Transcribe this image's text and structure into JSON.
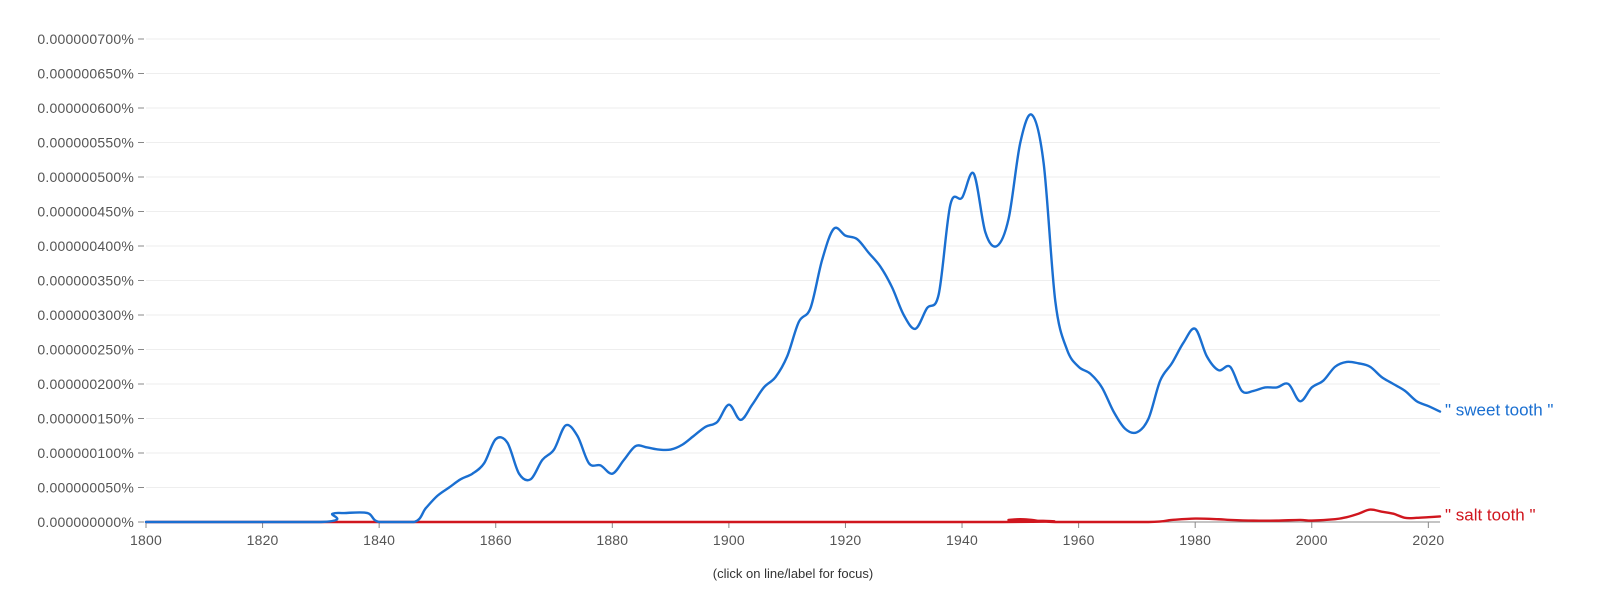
{
  "chart_data": {
    "type": "line",
    "title": "",
    "xlabel": "",
    "ylabel": "",
    "xlim": [
      1800,
      2022
    ],
    "ylim": [
      0,
      7e-07
    ],
    "grid": true,
    "legend": "right-end-labels",
    "x_ticks": [
      1800,
      1820,
      1840,
      1860,
      1880,
      1900,
      1920,
      1940,
      1960,
      1980,
      2000,
      2020
    ],
    "y_ticks": [
      0,
      5e-08,
      1e-07,
      1.5e-07,
      2e-07,
      2.5e-07,
      3e-07,
      3.5e-07,
      4e-07,
      4.5e-07,
      5e-07,
      5.5e-07,
      6e-07,
      6.5e-07,
      7e-07
    ],
    "y_tick_labels": [
      "0.000000000%",
      "0.000000050%",
      "0.000000100%",
      "0.000000150%",
      "0.000000200%",
      "0.000000250%",
      "0.000000300%",
      "0.000000350%",
      "0.000000400%",
      "0.000000450%",
      "0.000000500%",
      "0.000000550%",
      "0.000000600%",
      "0.000000650%",
      "0.000000700%"
    ],
    "series": [
      {
        "name": "\" sweet tooth \"",
        "color": "#1a6fd1",
        "x": [
          1800,
          1830,
          1832,
          1834,
          1838,
          1840,
          1846,
          1848,
          1850,
          1852,
          1854,
          1856,
          1858,
          1860,
          1862,
          1864,
          1866,
          1868,
          1870,
          1872,
          1874,
          1876,
          1878,
          1880,
          1882,
          1884,
          1886,
          1888,
          1890,
          1892,
          1894,
          1896,
          1898,
          1900,
          1902,
          1904,
          1906,
          1908,
          1910,
          1912,
          1914,
          1916,
          1918,
          1920,
          1922,
          1924,
          1926,
          1928,
          1930,
          1932,
          1934,
          1936,
          1938,
          1940,
          1942,
          1944,
          1946,
          1948,
          1950,
          1952,
          1954,
          1956,
          1958,
          1960,
          1962,
          1964,
          1966,
          1968,
          1970,
          1972,
          1974,
          1976,
          1978,
          1980,
          1982,
          1984,
          1986,
          1988,
          1990,
          1992,
          1994,
          1996,
          1998,
          2000,
          2002,
          2004,
          2006,
          2008,
          2010,
          2012,
          2014,
          2016,
          2018,
          2020,
          2022
        ],
        "values": [
          0,
          0,
          1.2e-08,
          1.3e-08,
          1.3e-08,
          0,
          0,
          2e-08,
          3.8e-08,
          5e-08,
          6.2e-08,
          7e-08,
          8.5e-08,
          1.2e-07,
          1.15e-07,
          7e-08,
          6.2e-08,
          9e-08,
          1.05e-07,
          1.4e-07,
          1.25e-07,
          8.5e-08,
          8.2e-08,
          7e-08,
          9e-08,
          1.1e-07,
          1.08e-07,
          1.05e-07,
          1.05e-07,
          1.12e-07,
          1.25e-07,
          1.38e-07,
          1.45e-07,
          1.7e-07,
          1.48e-07,
          1.7e-07,
          1.95e-07,
          2.1e-07,
          2.4e-07,
          2.9e-07,
          3.1e-07,
          3.8e-07,
          4.25e-07,
          4.15e-07,
          4.1e-07,
          3.9e-07,
          3.7e-07,
          3.4e-07,
          3e-07,
          2.8e-07,
          3.1e-07,
          3.3e-07,
          4.6e-07,
          4.7e-07,
          5.05e-07,
          4.2e-07,
          4e-07,
          4.4e-07,
          5.5e-07,
          5.9e-07,
          5.2e-07,
          3.2e-07,
          2.5e-07,
          2.25e-07,
          2.15e-07,
          1.95e-07,
          1.6e-07,
          1.35e-07,
          1.3e-07,
          1.5e-07,
          2.05e-07,
          2.3e-07,
          2.6e-07,
          2.8e-07,
          2.4e-07,
          2.2e-07,
          2.25e-07,
          1.9e-07,
          1.9e-07,
          1.95e-07,
          1.95e-07,
          2e-07,
          1.75e-07,
          1.95e-07,
          2.05e-07,
          2.25e-07,
          2.32e-07,
          2.3e-07,
          2.25e-07,
          2.1e-07,
          2e-07,
          1.9e-07,
          1.75e-07,
          1.68e-07,
          1.6e-07
        ]
      },
      {
        "name": "\" salt tooth \"",
        "color": "#d0161e",
        "x": [
          1800,
          1944,
          1948,
          1950,
          1952,
          1956,
          1972,
          1976,
          1980,
          1984,
          1986,
          1990,
          1994,
          1998,
          2000,
          2004,
          2006,
          2008,
          2010,
          2012,
          2014,
          2016,
          2018,
          2020,
          2022
        ],
        "values": [
          0,
          0,
          3e-09,
          4e-09,
          3e-09,
          0,
          0,
          3e-09,
          5e-09,
          4e-09,
          3e-09,
          2e-09,
          2e-09,
          3e-09,
          2e-09,
          4e-09,
          7e-09,
          1.2e-08,
          1.8e-08,
          1.5e-08,
          1.2e-08,
          6e-09,
          6e-09,
          7e-09,
          8e-09
        ]
      }
    ]
  },
  "ui": {
    "hint": "(click on line/label for focus)"
  }
}
